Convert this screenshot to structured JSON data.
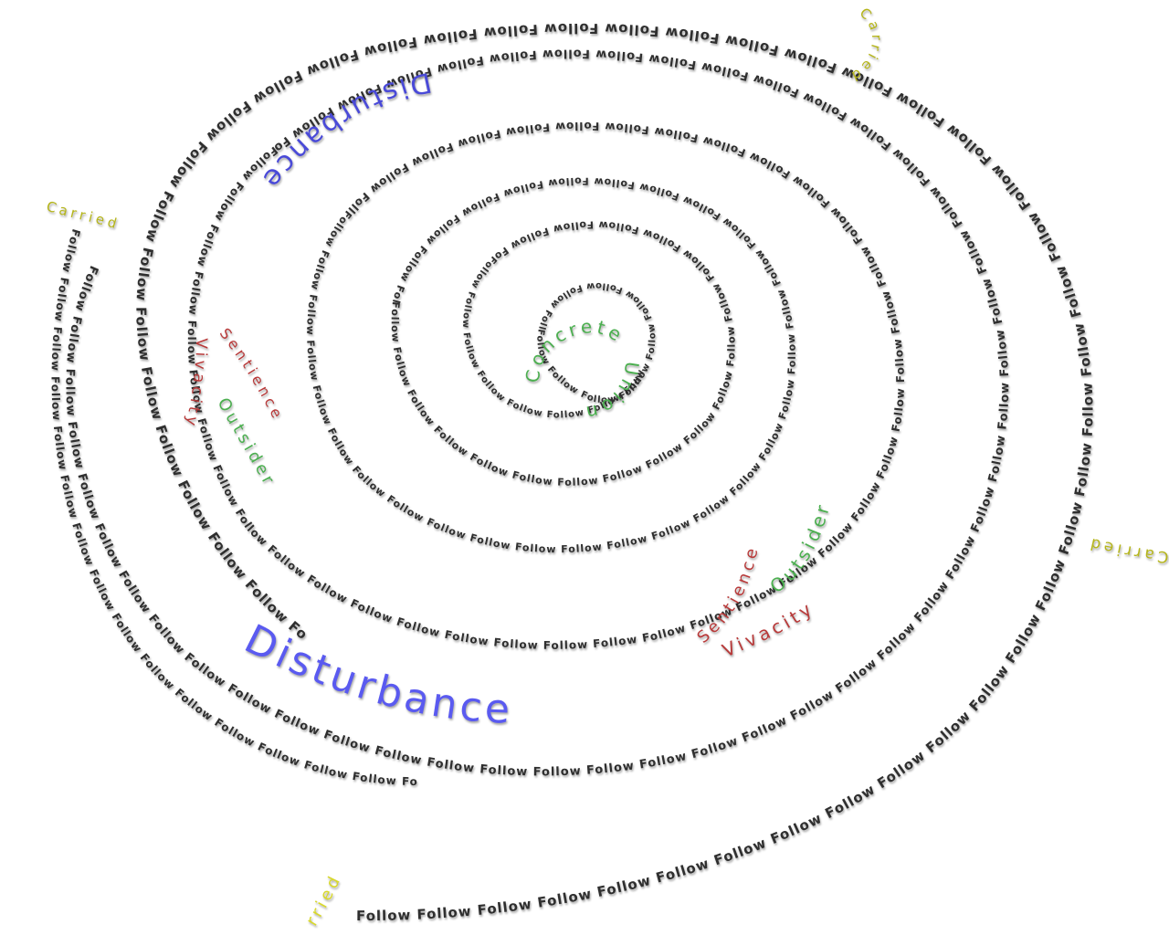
{
  "scene": {
    "background_color": "#ffffff",
    "follow_word": "Follow",
    "follow_color": "#2f2f2f",
    "words": [
      {
        "key": "disturbance_big",
        "text": "Disturbance",
        "color": "#5a5af0"
      },
      {
        "key": "disturbance_top",
        "text": "Disturbance",
        "color": "#4a4ad8"
      },
      {
        "key": "sentience_right",
        "text": "Sentience",
        "color": "#b83a3a"
      },
      {
        "key": "vivacity_right",
        "text": "Vivacity",
        "color": "#b83a3a"
      },
      {
        "key": "outsider_right",
        "text": "Outsider",
        "color": "#4caf50"
      },
      {
        "key": "sentience_left",
        "text": "Sentience",
        "color": "#b83a3a"
      },
      {
        "key": "vivacity_left",
        "text": "Vivacity",
        "color": "#b83a3a"
      },
      {
        "key": "outsider_left",
        "text": "Outsider",
        "color": "#4caf50"
      },
      {
        "key": "concrete",
        "text": "Concrete",
        "color": "#4caf50"
      },
      {
        "key": "union",
        "text": "Union",
        "color": "#4caf50"
      },
      {
        "key": "carried_topright",
        "text": "Carried",
        "color": "#b5b51a"
      },
      {
        "key": "carried_left",
        "text": "Carried",
        "color": "#b5b51a"
      },
      {
        "key": "carried_right",
        "text": "Carried",
        "color": "#b5b51a"
      },
      {
        "key": "carried_bottom",
        "text": "rried",
        "color": "#d8d82a"
      }
    ]
  }
}
